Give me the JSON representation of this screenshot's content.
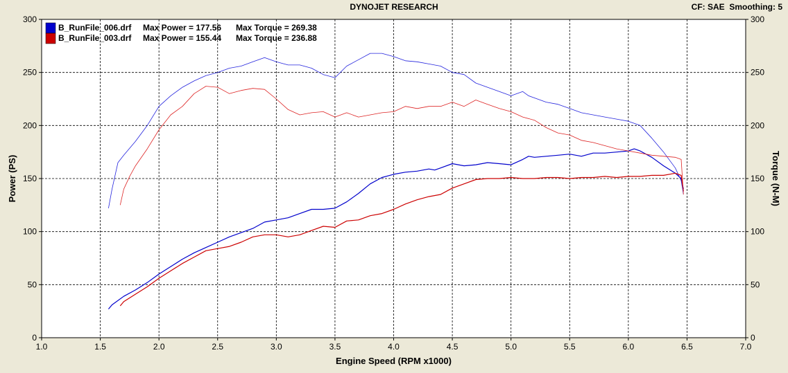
{
  "header": {
    "title": "DYNOJET RESEARCH",
    "cf": "CF: SAE",
    "smoothing": "Smoothing: 5"
  },
  "chart_data": {
    "type": "line",
    "xlabel": "Engine Speed (RPM x1000)",
    "ylabel_left": "Power (PS)",
    "ylabel_right": "Torque (N-M)",
    "xlim": [
      1.0,
      7.0
    ],
    "ylim_left": [
      0,
      300
    ],
    "ylim_right": [
      0,
      300
    ],
    "x_ticks": [
      "1.0",
      "1.5",
      "2.0",
      "2.5",
      "3.0",
      "3.5",
      "4.0",
      "4.5",
      "5.0",
      "5.5",
      "6.0",
      "6.5",
      "7.0"
    ],
    "y_ticks_left": [
      "0",
      "50",
      "100",
      "150",
      "200",
      "250",
      "300"
    ],
    "y_ticks_right": [
      "0",
      "50",
      "100",
      "150",
      "200",
      "250",
      "300"
    ],
    "grid": true,
    "legend_position": "top-left",
    "legend": [
      {
        "file": "B_RunFile_006.drf",
        "power": "Max Power = 177.56",
        "torque": "Max Torque = 269.38",
        "color": "#0000cc"
      },
      {
        "file": "B_RunFile_003.drf",
        "power": "Max Power = 155.44",
        "torque": "Max Torque = 236.88",
        "color": "#cc0000"
      }
    ],
    "series": [
      {
        "file": "B_RunFile_006.drf",
        "quantity": "power",
        "axis": "left",
        "color": "#0000cc",
        "width": 1.2,
        "x": [
          1.57,
          1.6,
          1.7,
          1.8,
          1.9,
          2.0,
          2.1,
          2.2,
          2.3,
          2.4,
          2.5,
          2.6,
          2.7,
          2.8,
          2.9,
          3.0,
          3.1,
          3.2,
          3.3,
          3.4,
          3.5,
          3.6,
          3.7,
          3.8,
          3.9,
          4.0,
          4.1,
          4.2,
          4.3,
          4.35,
          4.4,
          4.5,
          4.6,
          4.7,
          4.8,
          4.9,
          5.0,
          5.1,
          5.15,
          5.2,
          5.3,
          5.4,
          5.5,
          5.6,
          5.7,
          5.8,
          5.9,
          6.0,
          6.05,
          6.1,
          6.2,
          6.3,
          6.4,
          6.45,
          6.47
        ],
        "y": [
          27,
          31,
          39,
          45,
          52,
          60,
          67,
          74,
          80,
          85,
          90,
          95,
          99,
          103,
          109,
          111,
          113,
          117,
          121,
          121,
          122,
          128,
          136,
          145,
          151,
          154,
          156,
          157,
          159,
          158,
          160,
          164,
          162,
          163,
          165,
          164,
          163,
          168,
          171,
          170,
          171,
          172,
          173,
          171,
          174,
          174,
          175,
          176,
          178,
          176,
          170,
          162,
          155,
          150,
          140
        ]
      },
      {
        "file": "B_RunFile_006.drf",
        "quantity": "torque",
        "axis": "right",
        "color": "#2222dd",
        "width": 0.8,
        "x": [
          1.57,
          1.6,
          1.65,
          1.7,
          1.8,
          1.9,
          2.0,
          2.1,
          2.2,
          2.3,
          2.4,
          2.5,
          2.6,
          2.7,
          2.8,
          2.9,
          3.0,
          3.1,
          3.2,
          3.3,
          3.4,
          3.5,
          3.6,
          3.7,
          3.8,
          3.9,
          4.0,
          4.1,
          4.2,
          4.3,
          4.4,
          4.5,
          4.6,
          4.7,
          4.8,
          4.9,
          5.0,
          5.1,
          5.15,
          5.2,
          5.3,
          5.4,
          5.5,
          5.6,
          5.7,
          5.8,
          5.9,
          6.0,
          6.1,
          6.2,
          6.3,
          6.4,
          6.45,
          6.47
        ],
        "y": [
          122,
          140,
          165,
          172,
          185,
          200,
          218,
          228,
          236,
          242,
          247,
          250,
          254,
          256,
          260,
          264,
          260,
          257,
          257,
          254,
          248,
          245,
          256,
          262,
          268,
          268,
          265,
          261,
          260,
          258,
          256,
          250,
          248,
          240,
          236,
          232,
          228,
          232,
          228,
          226,
          222,
          220,
          216,
          212,
          210,
          208,
          206,
          204,
          200,
          188,
          175,
          160,
          148,
          135
        ]
      },
      {
        "file": "B_RunFile_003.drf",
        "quantity": "power",
        "axis": "left",
        "color": "#cc0000",
        "width": 1.2,
        "x": [
          1.67,
          1.7,
          1.8,
          1.9,
          2.0,
          2.1,
          2.2,
          2.3,
          2.4,
          2.5,
          2.6,
          2.7,
          2.8,
          2.9,
          3.0,
          3.1,
          3.2,
          3.3,
          3.4,
          3.5,
          3.6,
          3.7,
          3.8,
          3.9,
          4.0,
          4.1,
          4.2,
          4.3,
          4.4,
          4.5,
          4.6,
          4.7,
          4.8,
          4.9,
          5.0,
          5.1,
          5.2,
          5.3,
          5.4,
          5.5,
          5.6,
          5.7,
          5.8,
          5.9,
          6.0,
          6.1,
          6.2,
          6.3,
          6.4,
          6.45,
          6.47
        ],
        "y": [
          30,
          34,
          41,
          48,
          56,
          63,
          70,
          76,
          82,
          84,
          86,
          90,
          95,
          97,
          97,
          95,
          97,
          101,
          105,
          104,
          110,
          111,
          115,
          117,
          121,
          126,
          130,
          133,
          135,
          141,
          145,
          149,
          150,
          150,
          151,
          150,
          150,
          151,
          151,
          150,
          151,
          151,
          152,
          151,
          152,
          152,
          153,
          153,
          155,
          153,
          138
        ]
      },
      {
        "file": "B_RunFile_003.drf",
        "quantity": "torque",
        "axis": "right",
        "color": "#dd2222",
        "width": 0.8,
        "x": [
          1.67,
          1.7,
          1.75,
          1.8,
          1.9,
          2.0,
          2.1,
          2.2,
          2.3,
          2.4,
          2.5,
          2.6,
          2.7,
          2.8,
          2.9,
          3.0,
          3.1,
          3.2,
          3.3,
          3.4,
          3.5,
          3.6,
          3.7,
          3.8,
          3.9,
          4.0,
          4.1,
          4.2,
          4.3,
          4.4,
          4.5,
          4.6,
          4.7,
          4.8,
          4.9,
          5.0,
          5.1,
          5.2,
          5.3,
          5.4,
          5.5,
          5.6,
          5.7,
          5.8,
          5.9,
          6.0,
          6.1,
          6.2,
          6.3,
          6.4,
          6.45,
          6.47
        ],
        "y": [
          125,
          140,
          152,
          162,
          178,
          196,
          210,
          218,
          230,
          237,
          236,
          230,
          233,
          235,
          234,
          225,
          215,
          210,
          212,
          213,
          208,
          212,
          208,
          210,
          212,
          213,
          218,
          216,
          218,
          218,
          222,
          218,
          224,
          220,
          216,
          213,
          208,
          205,
          198,
          193,
          191,
          186,
          184,
          181,
          178,
          176,
          174,
          172,
          171,
          170,
          168,
          135
        ]
      }
    ]
  }
}
